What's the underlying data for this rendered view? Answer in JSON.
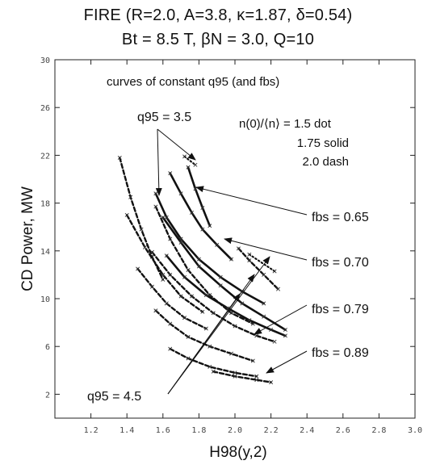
{
  "chart_data": {
    "type": "line",
    "title": "FIRE (R=2.0, A=3.8, κ=1.87, δ=0.54)",
    "subtitle": "Bt = 8.5 T, βN = 3.0, Q=10",
    "xlabel": "H98(y,2)",
    "ylabel": "CD Power, MW",
    "xlim": [
      1.0,
      3.0
    ],
    "ylim": [
      0,
      30
    ],
    "xticks": [
      "1.2",
      "1.4",
      "1.6",
      "1.8",
      "2.0",
      "2.2",
      "2.4",
      "2.6",
      "2.8",
      "3.0"
    ],
    "yticks": [
      "2",
      "6",
      "10",
      "14",
      "18",
      "22",
      "26",
      "30"
    ],
    "grid": false,
    "annotations": {
      "header": "curves of constant q95 (and fbs)",
      "q95_top": "q95 = 3.5",
      "q95_bottom": "q95 = 4.5",
      "legend_line1": "n(0)/⟨n⟩ = 1.5   dot",
      "legend_line2": "1.75  solid",
      "legend_line3": "2.0   dash",
      "fbs1": "fbs = 0.65",
      "fbs2": "fbs = 0.70",
      "fbs3": "fbs = 0.79",
      "fbs4": "fbs = 0.89"
    },
    "series": [
      {
        "style": "dot",
        "x": [
          1.72,
          1.78
        ],
        "y": [
          21.9,
          21.2
        ]
      },
      {
        "style": "dot",
        "x": [
          2.08,
          2.22
        ],
        "y": [
          13.7,
          12.3
        ]
      },
      {
        "style": "dash",
        "x": [
          1.36,
          1.42,
          1.48,
          1.54,
          1.6
        ],
        "y": [
          21.8,
          18.5,
          15.8,
          13.5,
          11.6
        ]
      },
      {
        "style": "dash",
        "x": [
          1.56,
          1.64,
          1.74,
          1.86,
          1.98,
          2.1
        ],
        "y": [
          17.7,
          15.0,
          12.4,
          10.3,
          8.8,
          7.9
        ]
      },
      {
        "style": "dash",
        "x": [
          1.4,
          1.5,
          1.6,
          1.7,
          1.82
        ],
        "y": [
          17.0,
          14.3,
          12.0,
          10.2,
          8.9
        ]
      },
      {
        "style": "dash",
        "x": [
          1.54,
          1.64,
          1.76,
          1.88,
          2.0,
          2.12,
          2.22
        ],
        "y": [
          13.9,
          12.0,
          10.2,
          8.8,
          7.7,
          6.9,
          6.4
        ]
      },
      {
        "style": "dash",
        "x": [
          1.46,
          1.54,
          1.62,
          1.72,
          1.84
        ],
        "y": [
          12.5,
          11.0,
          9.6,
          8.4,
          7.5
        ]
      },
      {
        "style": "dash",
        "x": [
          1.56,
          1.64,
          1.74,
          1.86,
          1.98,
          2.1
        ],
        "y": [
          9.0,
          7.9,
          6.8,
          6.0,
          5.4,
          4.8
        ]
      },
      {
        "style": "dash",
        "x": [
          1.64,
          1.74,
          1.86,
          2.0,
          2.12
        ],
        "y": [
          5.8,
          5.0,
          4.3,
          3.8,
          3.5
        ]
      },
      {
        "style": "dash",
        "x": [
          1.88,
          2.0,
          2.12,
          2.2
        ],
        "y": [
          3.9,
          3.5,
          3.2,
          3.0
        ]
      },
      {
        "style": "dash",
        "x": [
          2.02,
          2.08,
          2.16,
          2.24
        ],
        "y": [
          14.2,
          13.2,
          12.0,
          10.8
        ]
      },
      {
        "style": "solid",
        "x": [
          1.74,
          1.78,
          1.82,
          1.86
        ],
        "y": [
          21.0,
          19.2,
          17.6,
          16.1
        ]
      },
      {
        "style": "solid",
        "x": [
          1.64,
          1.7,
          1.76,
          1.82,
          1.9,
          1.98
        ],
        "y": [
          20.5,
          18.8,
          17.2,
          15.8,
          14.5,
          13.3
        ]
      },
      {
        "style": "solid",
        "x": [
          1.56,
          1.62,
          1.7,
          1.8,
          1.92,
          2.04,
          2.16
        ],
        "y": [
          18.8,
          16.8,
          15.0,
          13.3,
          11.8,
          10.6,
          9.6
        ]
      },
      {
        "style": "solid",
        "x": [
          1.6,
          1.7,
          1.8,
          1.92,
          2.04,
          2.16,
          2.28
        ],
        "y": [
          16.8,
          14.7,
          12.7,
          11.1,
          9.6,
          8.5,
          7.4
        ]
      },
      {
        "style": "solid",
        "x": [
          1.62,
          1.72,
          1.84,
          1.96,
          2.08,
          2.2,
          2.28
        ],
        "y": [
          13.6,
          11.8,
          10.3,
          9.2,
          8.2,
          7.4,
          6.9
        ]
      }
    ]
  }
}
